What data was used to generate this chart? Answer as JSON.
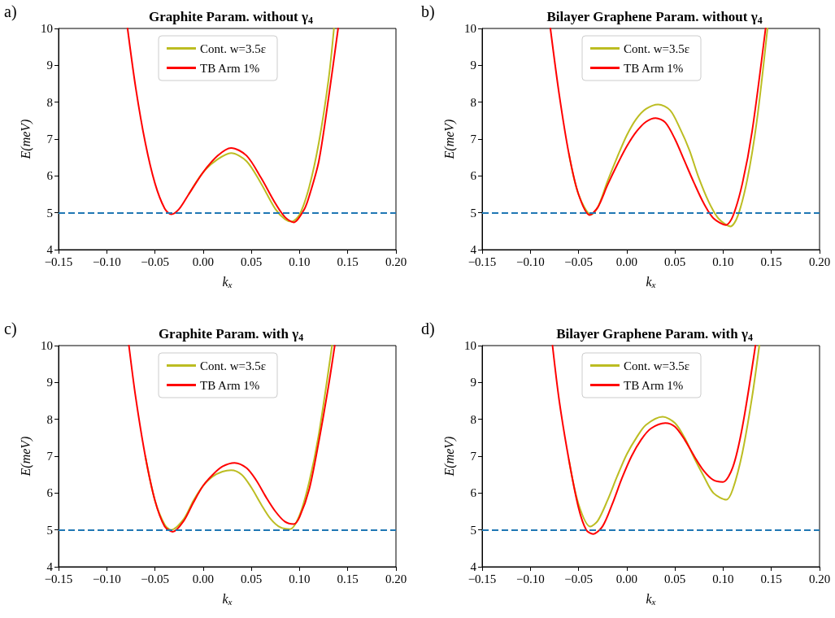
{
  "chart_data": [
    {
      "type": "line",
      "title": "Graphite Param. without γ$_{4}$",
      "annotations": [
        "a)"
      ],
      "xlabel": "k$_{x}$",
      "ylabel": "E(meV)",
      "xlim": [
        -0.15,
        0.2
      ],
      "xticks": [
        {
          "value": -0.15,
          "label": "−0.15"
        },
        {
          "value": -0.1,
          "label": "−0.10"
        },
        {
          "value": -0.05,
          "label": "−0.05"
        },
        {
          "value": 0,
          "label": "0.00"
        },
        {
          "value": 0.05,
          "label": "0.05"
        },
        {
          "value": 0.1,
          "label": "0.10"
        },
        {
          "value": 0.15,
          "label": "0.15"
        },
        {
          "value": 0.2,
          "label": "0.20"
        }
      ],
      "ylim": [
        4,
        10
      ],
      "yticks": [
        4,
        5,
        6,
        7,
        8,
        9,
        10
      ],
      "grid": false,
      "legend": "top",
      "marker": "none",
      "line_style": "solid",
      "ref_lines": [
        {
          "axis": "y",
          "value": 5,
          "color": "#1f77b4",
          "line_style": "dashed"
        }
      ],
      "series": [
        {
          "name": "Cont. w=3.5ε",
          "color": "#bcbd22",
          "x": [
            -0.015,
            0,
            0.015,
            0.029,
            0.045,
            0.06,
            0.075,
            0.085,
            0.0916,
            0.1,
            0.11,
            0.12,
            0.13,
            0.1357
          ],
          "values": [
            5.5,
            6.1,
            6.45,
            6.62,
            6.4,
            5.8,
            5.1,
            4.82,
            4.76,
            4.95,
            5.7,
            6.9,
            8.6,
            10
          ]
        },
        {
          "name": "TB Arm 1%",
          "color": "#ff0000",
          "x": [
            -0.0784,
            -0.07,
            -0.06,
            -0.05,
            -0.04,
            -0.033,
            -0.025,
            -0.015,
            0,
            0.015,
            0.029,
            0.045,
            0.06,
            0.075,
            0.085,
            0.094,
            0.105,
            0.11,
            0.12,
            0.13,
            0.14
          ],
          "values": [
            10,
            8.4,
            6.9,
            5.8,
            5.12,
            4.96,
            5.1,
            5.5,
            6.1,
            6.55,
            6.76,
            6.55,
            5.95,
            5.25,
            4.88,
            4.74,
            5.1,
            5.45,
            6.4,
            8.1,
            10
          ]
        }
      ]
    },
    {
      "type": "line",
      "title": "Bilayer Graphene Param. without γ$_{4}$",
      "annotations": [
        "b)"
      ],
      "xlabel": "k$_{x}$",
      "ylabel": "E(meV)",
      "xlim": [
        -0.15,
        0.2
      ],
      "xticks": [
        {
          "value": -0.15,
          "label": "−0.15"
        },
        {
          "value": -0.1,
          "label": "−0.10"
        },
        {
          "value": -0.05,
          "label": "−0.05"
        },
        {
          "value": 0,
          "label": "0.00"
        },
        {
          "value": 0.05,
          "label": "0.05"
        },
        {
          "value": 0.1,
          "label": "0.10"
        },
        {
          "value": 0.15,
          "label": "0.15"
        },
        {
          "value": 0.2,
          "label": "0.20"
        }
      ],
      "ylim": [
        4,
        10
      ],
      "yticks": [
        4,
        5,
        6,
        7,
        8,
        9,
        10
      ],
      "grid": false,
      "legend": "top",
      "marker": "none",
      "line_style": "solid",
      "ref_lines": [
        {
          "axis": "y",
          "value": 5,
          "color": "#1f77b4",
          "line_style": "dashed"
        }
      ],
      "series": [
        {
          "name": "Cont. w=3.5ε",
          "color": "#bcbd22",
          "x": [
            -0.06,
            -0.05,
            -0.037,
            -0.03,
            -0.02,
            -0.01,
            0,
            0.01,
            0.02,
            0.0326,
            0.045,
            0.055,
            0.065,
            0.074,
            0.085,
            0.095,
            0.1076,
            0.115,
            0.125,
            0.135,
            0.146
          ],
          "values": [
            6.6,
            5.5,
            4.95,
            5.15,
            5.85,
            6.5,
            7.1,
            7.55,
            7.82,
            7.94,
            7.78,
            7.3,
            6.7,
            6.0,
            5.3,
            4.85,
            4.63,
            4.9,
            5.9,
            7.5,
            10
          ]
        },
        {
          "name": "TB Arm 1%",
          "color": "#ff0000",
          "x": [
            -0.0792,
            -0.07,
            -0.06,
            -0.05,
            -0.0385,
            -0.03,
            -0.02,
            -0.01,
            0,
            0.01,
            0.02,
            0.03,
            0.04,
            0.05,
            0.06,
            0.07,
            0.08,
            0.09,
            0.103,
            0.11,
            0.12,
            0.13,
            0.144
          ],
          "values": [
            10,
            8.2,
            6.6,
            5.5,
            4.94,
            5.15,
            5.75,
            6.3,
            6.8,
            7.2,
            7.47,
            7.57,
            7.45,
            7.0,
            6.4,
            5.8,
            5.25,
            4.85,
            4.67,
            4.9,
            5.8,
            7.2,
            10
          ]
        }
      ]
    },
    {
      "type": "line",
      "title": "Graphite Param. with γ$_{4}$",
      "annotations": [
        "c)"
      ],
      "xlabel": "k$_{x}$",
      "ylabel": "E(meV)",
      "xlim": [
        -0.15,
        0.2
      ],
      "xticks": [
        {
          "value": -0.15,
          "label": "−0.15"
        },
        {
          "value": -0.1,
          "label": "−0.10"
        },
        {
          "value": -0.05,
          "label": "−0.05"
        },
        {
          "value": 0,
          "label": "0.00"
        },
        {
          "value": 0.05,
          "label": "0.05"
        },
        {
          "value": 0.1,
          "label": "0.10"
        },
        {
          "value": 0.15,
          "label": "0.15"
        },
        {
          "value": 0.2,
          "label": "0.20"
        }
      ],
      "ylim": [
        4,
        10
      ],
      "yticks": [
        4,
        5,
        6,
        7,
        8,
        9,
        10
      ],
      "grid": false,
      "legend": "top",
      "marker": "none",
      "line_style": "solid",
      "ref_lines": [
        {
          "axis": "y",
          "value": 5,
          "color": "#1f77b4",
          "line_style": "dashed"
        }
      ],
      "series": [
        {
          "name": "Cont. w=3.5ε",
          "color": "#bcbd22",
          "x": [
            -0.06,
            -0.05,
            -0.04,
            -0.0334,
            -0.02,
            -0.01,
            0,
            0.01,
            0.02,
            0.029,
            0.04,
            0.05,
            0.06,
            0.07,
            0.08,
            0.09,
            0.1,
            0.11,
            0.12,
            0.1337
          ],
          "values": [
            7.0,
            5.8,
            5.15,
            5.0,
            5.3,
            5.8,
            6.2,
            6.45,
            6.58,
            6.62,
            6.5,
            6.15,
            5.7,
            5.3,
            5.07,
            5.02,
            5.4,
            6.3,
            7.6,
            10
          ]
        },
        {
          "name": "TB Arm 1%",
          "color": "#ff0000",
          "x": [
            -0.077,
            -0.07,
            -0.06,
            -0.05,
            -0.04,
            -0.0315,
            -0.02,
            -0.01,
            0,
            0.01,
            0.02,
            0.0326,
            0.045,
            0.055,
            0.065,
            0.075,
            0.085,
            0.094,
            0.1,
            0.11,
            0.12,
            0.13,
            0.1365
          ],
          "values": [
            10,
            8.6,
            7.0,
            5.8,
            5.1,
            4.95,
            5.25,
            5.75,
            6.2,
            6.5,
            6.72,
            6.82,
            6.68,
            6.35,
            5.9,
            5.5,
            5.22,
            5.16,
            5.35,
            6.1,
            7.4,
            8.9,
            10
          ]
        }
      ]
    },
    {
      "type": "line",
      "title": "Bilayer Graphene Param. with γ$_{4}$",
      "annotations": [
        "d)"
      ],
      "xlabel": "k$_{x}$",
      "ylabel": "E(meV)",
      "xlim": [
        -0.15,
        0.2
      ],
      "xticks": [
        {
          "value": -0.15,
          "label": "−0.15"
        },
        {
          "value": -0.1,
          "label": "−0.10"
        },
        {
          "value": -0.05,
          "label": "−0.05"
        },
        {
          "value": 0,
          "label": "0.00"
        },
        {
          "value": 0.05,
          "label": "0.05"
        },
        {
          "value": 0.1,
          "label": "0.10"
        },
        {
          "value": 0.15,
          "label": "0.15"
        },
        {
          "value": 0.2,
          "label": "0.20"
        }
      ],
      "ylim": [
        4,
        10
      ],
      "yticks": [
        4,
        5,
        6,
        7,
        8,
        9,
        10
      ],
      "grid": false,
      "legend": "top",
      "marker": "none",
      "line_style": "solid",
      "ref_lines": [
        {
          "axis": "y",
          "value": 5,
          "color": "#1f77b4",
          "line_style": "dashed"
        }
      ],
      "series": [
        {
          "name": "Cont. w=3.5ε",
          "color": "#bcbd22",
          "x": [
            -0.06,
            -0.05,
            -0.0377,
            -0.03,
            -0.02,
            -0.01,
            0,
            0.01,
            0.02,
            0.0373,
            0.05,
            0.06,
            0.07,
            0.08,
            0.09,
            0.1033,
            0.11,
            0.12,
            0.13,
            0.1375
          ],
          "values": [
            6.9,
            5.7,
            5.09,
            5.25,
            5.8,
            6.45,
            7.05,
            7.5,
            7.85,
            8.07,
            7.9,
            7.5,
            6.95,
            6.45,
            6.0,
            5.82,
            6.1,
            7.1,
            8.6,
            10
          ]
        },
        {
          "name": "TB Arm 1%",
          "color": "#ff0000",
          "x": [
            -0.077,
            -0.07,
            -0.06,
            -0.05,
            -0.042,
            -0.0349,
            -0.025,
            -0.015,
            -0.005,
            0.005,
            0.015,
            0.025,
            0.04,
            0.05,
            0.06,
            0.07,
            0.08,
            0.09,
            0.0997,
            0.11,
            0.12,
            0.1335
          ],
          "values": [
            10,
            8.5,
            6.9,
            5.6,
            5.0,
            4.89,
            5.1,
            5.7,
            6.4,
            7.0,
            7.45,
            7.75,
            7.9,
            7.8,
            7.45,
            7.0,
            6.6,
            6.35,
            6.3,
            6.7,
            7.8,
            10
          ]
        }
      ]
    }
  ]
}
